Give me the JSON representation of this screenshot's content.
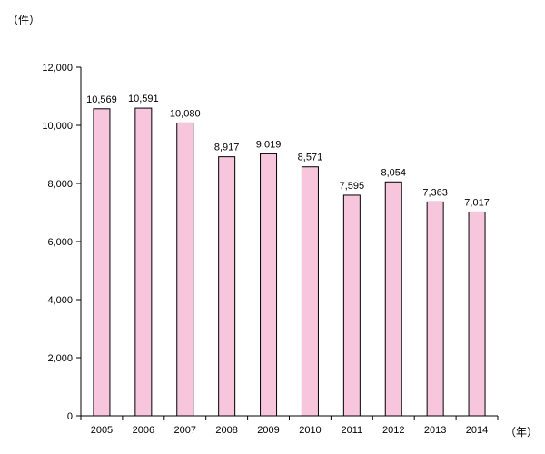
{
  "chart_data": {
    "type": "bar",
    "title": "",
    "xlabel": "",
    "ylabel": "",
    "y_unit": "（件）",
    "x_unit": "（年）",
    "categories": [
      "2005",
      "2006",
      "2007",
      "2008",
      "2009",
      "2010",
      "2011",
      "2012",
      "2013",
      "2014"
    ],
    "values": [
      10569,
      10591,
      10080,
      8917,
      9019,
      8571,
      7595,
      8054,
      7363,
      7017
    ],
    "data_labels": [
      "10,569",
      "10,591",
      "10,080",
      "8,917",
      "9,019",
      "8,571",
      "7,595",
      "8,054",
      "7,363",
      "7,017"
    ],
    "ylim": [
      0,
      12000
    ],
    "yticks": [
      0,
      2000,
      4000,
      6000,
      8000,
      10000,
      12000
    ],
    "ytick_labels": [
      "0",
      "2,000",
      "4,000",
      "6,000",
      "8,000",
      "10,000",
      "12,000"
    ],
    "grid": false,
    "legend": "none",
    "colors": {
      "bar_fill": "#f7c6dd",
      "bar_stroke": "#000000",
      "axis": "#000000"
    }
  }
}
